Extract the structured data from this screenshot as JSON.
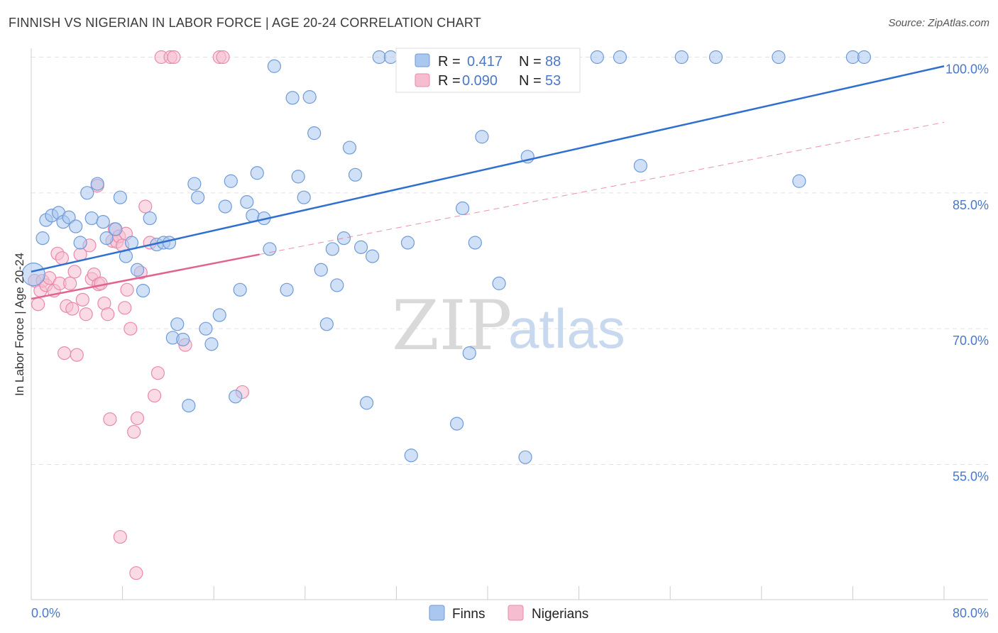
{
  "header": {
    "title": "FINNISH VS NIGERIAN IN LABOR FORCE | AGE 20-24 CORRELATION CHART",
    "source": "Source: ZipAtlas.com"
  },
  "watermark": {
    "zip": "ZIP",
    "atlas": "atlas"
  },
  "colors": {
    "finns_fill": "#a9c7ef",
    "finns_stroke": "#6f9bd8",
    "finns_line": "#2f6fd0",
    "nigerians_fill": "#f6bdd0",
    "nigerians_stroke": "#e98aaa",
    "nigerians_line": "#e0648e",
    "grid": "#e2e2e2",
    "tick_label": "#4a78c8"
  },
  "legend_top": {
    "finns": {
      "r_label": "R =",
      "r_value": "0.417",
      "n_label": "N =",
      "n_value": "88"
    },
    "nigerians": {
      "r_label": "R =",
      "r_value": "0.090",
      "n_label": "N =",
      "n_value": "53"
    }
  },
  "legend_bottom": {
    "finns": "Finns",
    "nigerians": "Nigerians"
  },
  "chart_data": {
    "type": "scatter",
    "title": "FINNISH VS NIGERIAN IN LABOR FORCE | AGE 20-24 CORRELATION CHART",
    "xlabel": "",
    "ylabel": "In Labor Force | Age 20-24",
    "xlim": [
      0,
      80
    ],
    "ylim": [
      40,
      102
    ],
    "x_tick_labels": [
      "0.0%",
      "80.0%"
    ],
    "y_ticks": [
      55,
      70,
      85,
      100
    ],
    "y_tick_labels": [
      "55.0%",
      "70.0%",
      "85.0%",
      "100.0%"
    ],
    "grid": true,
    "legend_placement": "top-center",
    "series": [
      {
        "name": "Finns",
        "r": 0.417,
        "n": 88,
        "trend": {
          "x": [
            0,
            80
          ],
          "y": [
            76.3,
            99.0
          ],
          "style": "solid"
        },
        "points": [
          [
            0.2,
            76.0
          ],
          [
            1.0,
            80.0
          ],
          [
            1.3,
            82.0
          ],
          [
            1.8,
            82.5
          ],
          [
            2.4,
            82.8
          ],
          [
            2.8,
            81.8
          ],
          [
            3.3,
            82.3
          ],
          [
            3.9,
            81.3
          ],
          [
            4.3,
            79.5
          ],
          [
            4.9,
            85.0
          ],
          [
            5.3,
            82.2
          ],
          [
            5.8,
            86.0
          ],
          [
            6.3,
            81.8
          ],
          [
            6.6,
            80.0
          ],
          [
            7.4,
            81.0
          ],
          [
            7.8,
            84.5
          ],
          [
            8.3,
            78.0
          ],
          [
            8.8,
            79.5
          ],
          [
            9.3,
            76.5
          ],
          [
            9.8,
            74.2
          ],
          [
            10.4,
            82.2
          ],
          [
            11.0,
            79.3
          ],
          [
            11.6,
            79.5
          ],
          [
            12.1,
            79.5
          ],
          [
            12.4,
            69.0
          ],
          [
            12.8,
            70.5
          ],
          [
            13.3,
            68.8
          ],
          [
            13.8,
            61.5
          ],
          [
            14.3,
            86.0
          ],
          [
            14.6,
            84.5
          ],
          [
            15.3,
            70.0
          ],
          [
            15.8,
            68.3
          ],
          [
            16.5,
            71.5
          ],
          [
            17.0,
            83.5
          ],
          [
            17.5,
            86.3
          ],
          [
            17.9,
            62.5
          ],
          [
            18.3,
            74.3
          ],
          [
            18.9,
            84.0
          ],
          [
            19.4,
            82.5
          ],
          [
            19.8,
            87.2
          ],
          [
            20.4,
            82.2
          ],
          [
            20.9,
            78.8
          ],
          [
            21.3,
            99.0
          ],
          [
            22.4,
            74.3
          ],
          [
            22.9,
            95.5
          ],
          [
            23.4,
            86.8
          ],
          [
            23.9,
            84.5
          ],
          [
            24.4,
            95.6
          ],
          [
            24.8,
            91.6
          ],
          [
            25.4,
            76.5
          ],
          [
            25.9,
            70.5
          ],
          [
            26.4,
            78.8
          ],
          [
            26.8,
            74.8
          ],
          [
            27.4,
            80.0
          ],
          [
            27.9,
            90.0
          ],
          [
            28.4,
            87.0
          ],
          [
            28.9,
            79.0
          ],
          [
            29.4,
            61.8
          ],
          [
            29.9,
            78.0
          ],
          [
            30.5,
            100.0
          ],
          [
            31.5,
            100.0
          ],
          [
            33.0,
            79.5
          ],
          [
            33.3,
            56.0
          ],
          [
            34.4,
            100.0
          ],
          [
            35.4,
            100.0
          ],
          [
            36.0,
            100.0
          ],
          [
            37.3,
            59.5
          ],
          [
            37.8,
            83.3
          ],
          [
            38.4,
            67.3
          ],
          [
            38.9,
            79.5
          ],
          [
            39.5,
            91.2
          ],
          [
            40.5,
            100.0
          ],
          [
            41.0,
            75.0
          ],
          [
            41.5,
            100.0
          ],
          [
            42.5,
            100.0
          ],
          [
            43.3,
            55.8
          ],
          [
            43.5,
            89.0
          ],
          [
            44.2,
            100.0
          ],
          [
            45.5,
            100.0
          ],
          [
            49.6,
            100.0
          ],
          [
            51.6,
            100.0
          ],
          [
            53.4,
            88.0
          ],
          [
            57.0,
            100.0
          ],
          [
            60.0,
            100.0
          ],
          [
            65.5,
            100.0
          ],
          [
            67.3,
            86.3
          ],
          [
            72.0,
            100.0
          ],
          [
            73.0,
            100.0
          ]
        ]
      },
      {
        "name": "Nigerians",
        "r": 0.09,
        "n": 53,
        "trend": {
          "x": [
            0,
            20
          ],
          "y": [
            73.3,
            78.2
          ],
          "style": "solid",
          "extension": {
            "x": [
              20,
              80
            ],
            "y": [
              78.2,
              92.8
            ],
            "style": "dashed"
          }
        },
        "points": [
          [
            0.3,
            75.3
          ],
          [
            0.6,
            72.7
          ],
          [
            0.8,
            74.2
          ],
          [
            1.0,
            75.3
          ],
          [
            1.3,
            74.8
          ],
          [
            1.6,
            75.6
          ],
          [
            2.0,
            74.2
          ],
          [
            2.3,
            78.3
          ],
          [
            2.5,
            75.0
          ],
          [
            2.7,
            77.8
          ],
          [
            2.9,
            67.3
          ],
          [
            3.1,
            72.5
          ],
          [
            3.4,
            75.0
          ],
          [
            3.6,
            72.2
          ],
          [
            3.8,
            76.3
          ],
          [
            4.0,
            67.1
          ],
          [
            4.3,
            78.2
          ],
          [
            4.5,
            73.2
          ],
          [
            4.8,
            71.6
          ],
          [
            5.1,
            79.2
          ],
          [
            5.3,
            75.5
          ],
          [
            5.5,
            76.0
          ],
          [
            5.8,
            85.8
          ],
          [
            5.9,
            74.9
          ],
          [
            6.1,
            75.0
          ],
          [
            6.4,
            72.8
          ],
          [
            6.7,
            71.6
          ],
          [
            6.9,
            60.0
          ],
          [
            7.1,
            79.7
          ],
          [
            7.3,
            81.0
          ],
          [
            7.5,
            79.6
          ],
          [
            7.7,
            80.2
          ],
          [
            8.0,
            79.2
          ],
          [
            8.2,
            72.3
          ],
          [
            8.4,
            74.3
          ],
          [
            8.7,
            70.0
          ],
          [
            9.0,
            58.6
          ],
          [
            9.3,
            60.1
          ],
          [
            9.6,
            76.2
          ],
          [
            10.0,
            83.5
          ],
          [
            10.4,
            79.5
          ],
          [
            10.8,
            62.6
          ],
          [
            11.1,
            65.1
          ],
          [
            11.4,
            100.0
          ],
          [
            12.2,
            100.0
          ],
          [
            12.5,
            100.0
          ],
          [
            13.5,
            68.2
          ],
          [
            16.5,
            100.0
          ],
          [
            16.8,
            100.0
          ],
          [
            18.5,
            63.0
          ],
          [
            7.8,
            47.0
          ],
          [
            9.2,
            43.0
          ],
          [
            8.3,
            80.5
          ]
        ]
      }
    ]
  }
}
